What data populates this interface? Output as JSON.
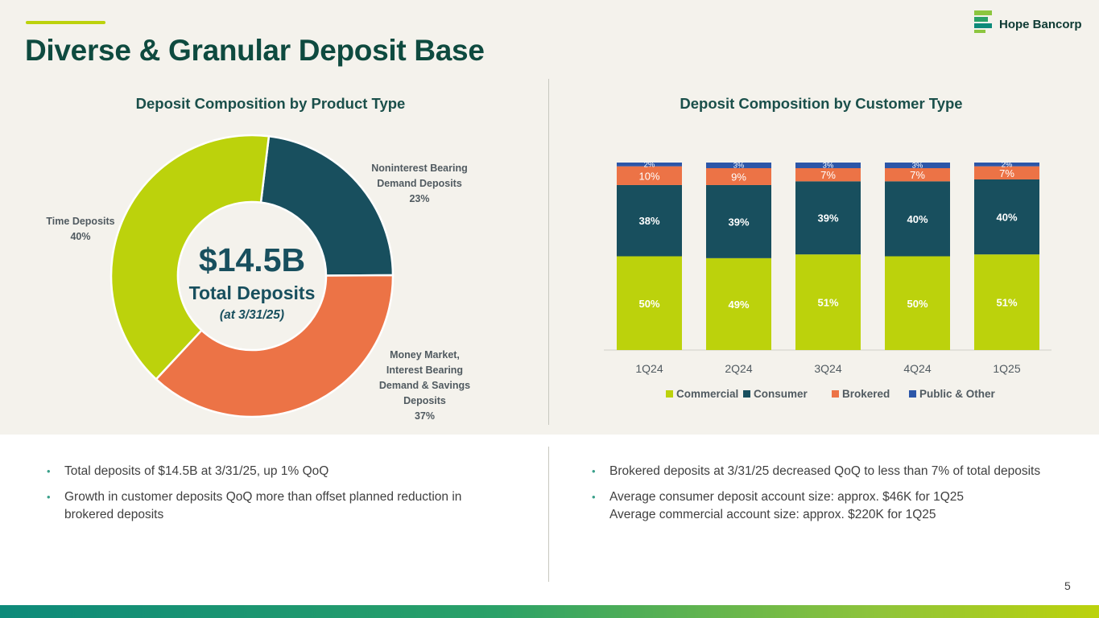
{
  "header": {
    "title": "Diverse & Granular Deposit Base",
    "logo_text": "Hope Bancorp"
  },
  "left_panel": {
    "title": "Deposit Composition by Product Type",
    "center_value": "$14.5B",
    "center_label": "Total Deposits",
    "center_date": "(at 3/31/25)",
    "slice_labels": {
      "noninterest": "Noninterest Bearing\nDemand Deposits\n23%",
      "money_market": "Money Market,\nInterest Bearing\nDemand & Savings\nDeposits\n37%",
      "time": "Time Deposits\n40%"
    }
  },
  "right_panel": {
    "title": "Deposit Composition by Customer Type"
  },
  "chart_data": [
    {
      "type": "pie",
      "title": "Deposit Composition by Product Type",
      "donut": true,
      "slices": [
        {
          "name": "Noninterest Bearing Demand Deposits",
          "value": 23,
          "color": "#184f5e"
        },
        {
          "name": "Money Market, Interest Bearing Demand & Savings Deposits",
          "value": 37,
          "color": "#ec7346"
        },
        {
          "name": "Time Deposits",
          "value": 40,
          "color": "#bcd20c"
        }
      ]
    },
    {
      "type": "bar",
      "stacked": true,
      "title": "Deposit Composition by Customer Type",
      "categories": [
        "1Q24",
        "2Q24",
        "3Q24",
        "4Q24",
        "1Q25"
      ],
      "ylim": [
        0,
        100
      ],
      "legend_position": "bottom",
      "series": [
        {
          "name": "Commercial",
          "color": "#bcd20c",
          "values": [
            50,
            49,
            51,
            50,
            51
          ],
          "labels": [
            "50%",
            "49%",
            "51%",
            "50%",
            "51%"
          ]
        },
        {
          "name": "Consumer",
          "color": "#184f5e",
          "values": [
            38,
            39,
            39,
            40,
            40
          ],
          "labels": [
            "38%",
            "39%",
            "39%",
            "40%",
            "40%"
          ]
        },
        {
          "name": "Brokered",
          "color": "#ec7346",
          "values": [
            10,
            9,
            7,
            7,
            7
          ],
          "labels": [
            "10%",
            "9%",
            "7%",
            "7%",
            "7%"
          ]
        },
        {
          "name": "Public & Other",
          "color": "#2c56a8",
          "values": [
            2,
            3,
            3,
            3,
            2
          ],
          "labels": [
            "2%",
            "3%",
            "3%",
            "3%",
            "2%"
          ]
        }
      ]
    }
  ],
  "bullets_left": [
    "Total deposits of $14.5B at 3/31/25, up 1% QoQ",
    "Growth in customer deposits QoQ more than offset planned reduction in brokered deposits"
  ],
  "bullets_right": [
    "Brokered deposits at 3/31/25 decreased QoQ to less than 7% of total deposits",
    "Average consumer deposit account size: approx. $46K for 1Q25\nAverage commercial account size: approx. $220K for 1Q25"
  ],
  "page_number": "5"
}
